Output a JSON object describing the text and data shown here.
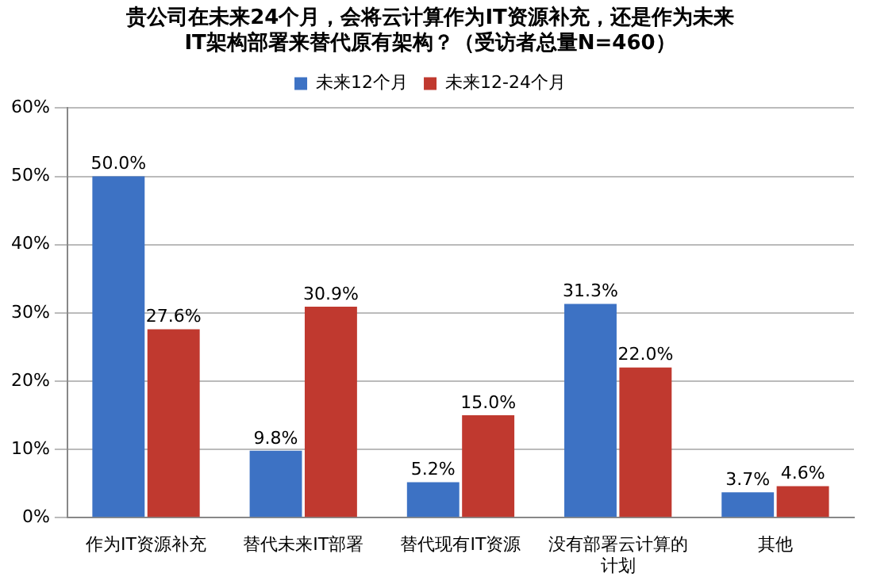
{
  "chart_data": {
    "type": "bar",
    "title": "贵公司在未来24个月，会将云计算作为IT资源补充，还是作为未来\nIT架构部署来替代原有架构？（受访者总量N=460）",
    "categories": [
      "作为IT资源补充",
      "替代未来IT部署",
      "替代现有IT资源",
      "没有部署云计算的计划",
      "其他"
    ],
    "series": [
      {
        "name": "未来12个月",
        "color": "#3d72c4",
        "values": [
          50.0,
          9.8,
          5.2,
          31.3,
          3.7
        ],
        "value_labels": [
          "50.0%",
          "9.8%",
          "5.2%",
          "31.3%",
          "3.7%"
        ]
      },
      {
        "name": "未来12-24个月",
        "color": "#c0392f",
        "values": [
          27.6,
          30.9,
          15.0,
          22.0,
          4.6
        ],
        "value_labels": [
          "27.6%",
          "30.9%",
          "15.0%",
          "22.0%",
          "4.6%"
        ]
      }
    ],
    "ylim": [
      0,
      60
    ],
    "yticks": [
      {
        "value": 0,
        "label": "0%"
      },
      {
        "value": 10,
        "label": "10%"
      },
      {
        "value": 20,
        "label": "20%"
      },
      {
        "value": 30,
        "label": "30%"
      },
      {
        "value": 40,
        "label": "40%"
      },
      {
        "value": 50,
        "label": "50%"
      },
      {
        "value": 60,
        "label": "60%"
      }
    ],
    "grid": "y",
    "legend": "top"
  }
}
